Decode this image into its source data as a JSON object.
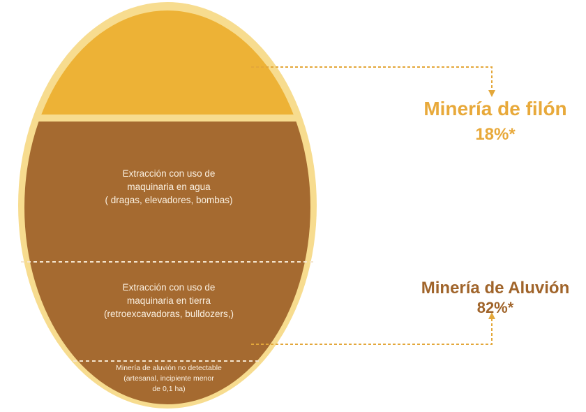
{
  "regions": [
    {
      "lines": [
        "Extracción  con uso de",
        "maquinaria en agua",
        "( dragas, elevadores, bombas)"
      ]
    },
    {
      "lines": [
        "Extracción  con uso de",
        "maquinaria en tierra",
        "(retroexcavadoras, bulldozers,)"
      ]
    },
    {
      "lines": [
        "Minería de aluvión no detectable",
        "(artesanal, incipiente menor",
        "de 0,1 ha)"
      ]
    }
  ],
  "labels": [
    {
      "name": "Minería de filón",
      "percent": "18%*"
    },
    {
      "name": "Minería de Aluvión",
      "percent": "82%*"
    }
  ]
}
